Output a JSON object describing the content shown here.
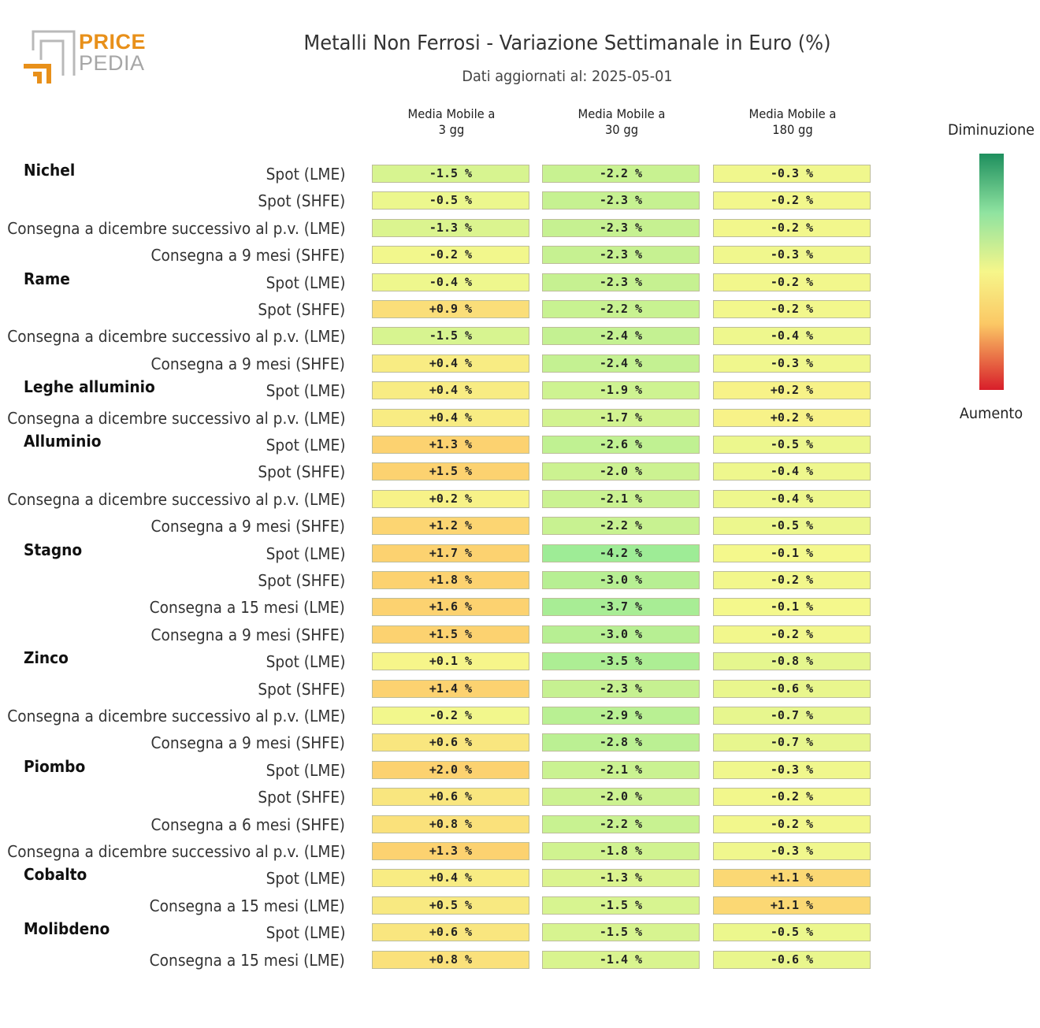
{
  "logo": {
    "word1": "PRICE",
    "word2": "PEDIA"
  },
  "chart_data": {
    "type": "heatmap",
    "title": "Metalli Non Ferrosi - Variazione Settimanale in Euro (%)",
    "subtitle": "Dati aggiornati al: 2025-05-01",
    "columns": [
      "Media Mobile a\n3 gg",
      "Media Mobile a\n30 gg",
      "Media Mobile a\n180 gg"
    ],
    "unit": "%",
    "legend": {
      "top": "Diminuzione",
      "bottom": "Aumento"
    },
    "groups": [
      {
        "name": "Nichel",
        "rows": [
          {
            "label": "Spot (LME)",
            "values": [
              -1.5,
              -2.2,
              -0.3
            ]
          },
          {
            "label": "Spot (SHFE)",
            "values": [
              -0.5,
              -2.3,
              -0.2
            ]
          },
          {
            "label": "Consegna a dicembre successivo al p.v. (LME)",
            "values": [
              -1.3,
              -2.3,
              -0.2
            ]
          },
          {
            "label": "Consegna a 9 mesi (SHFE)",
            "values": [
              -0.2,
              -2.3,
              -0.3
            ]
          }
        ]
      },
      {
        "name": "Rame",
        "rows": [
          {
            "label": "Spot (LME)",
            "values": [
              -0.4,
              -2.3,
              -0.2
            ]
          },
          {
            "label": "Spot (SHFE)",
            "values": [
              0.9,
              -2.2,
              -0.2
            ]
          },
          {
            "label": "Consegna a dicembre successivo al p.v. (LME)",
            "values": [
              -1.5,
              -2.4,
              -0.4
            ]
          },
          {
            "label": "Consegna a 9 mesi (SHFE)",
            "values": [
              0.4,
              -2.4,
              -0.3
            ]
          }
        ]
      },
      {
        "name": "Leghe alluminio",
        "rows": [
          {
            "label": "Spot (LME)",
            "values": [
              0.4,
              -1.9,
              0.2
            ]
          },
          {
            "label": "Consegna a dicembre successivo al p.v. (LME)",
            "values": [
              0.4,
              -1.7,
              0.2
            ]
          }
        ]
      },
      {
        "name": "Alluminio",
        "rows": [
          {
            "label": "Spot (LME)",
            "values": [
              1.3,
              -2.6,
              -0.5
            ]
          },
          {
            "label": "Spot (SHFE)",
            "values": [
              1.5,
              -2.0,
              -0.4
            ]
          },
          {
            "label": "Consegna a dicembre successivo al p.v. (LME)",
            "values": [
              0.2,
              -2.1,
              -0.4
            ]
          },
          {
            "label": "Consegna a 9 mesi (SHFE)",
            "values": [
              1.2,
              -2.2,
              -0.5
            ]
          }
        ]
      },
      {
        "name": "Stagno",
        "rows": [
          {
            "label": "Spot (LME)",
            "values": [
              1.7,
              -4.2,
              -0.1
            ]
          },
          {
            "label": "Spot (SHFE)",
            "values": [
              1.8,
              -3.0,
              -0.2
            ]
          },
          {
            "label": "Consegna a 15 mesi (LME)",
            "values": [
              1.6,
              -3.7,
              -0.1
            ]
          },
          {
            "label": "Consegna a 9 mesi (SHFE)",
            "values": [
              1.5,
              -3.0,
              -0.2
            ]
          }
        ]
      },
      {
        "name": "Zinco",
        "rows": [
          {
            "label": "Spot (LME)",
            "values": [
              0.1,
              -3.5,
              -0.8
            ]
          },
          {
            "label": "Spot (SHFE)",
            "values": [
              1.4,
              -2.3,
              -0.6
            ]
          },
          {
            "label": "Consegna a dicembre successivo al p.v. (LME)",
            "values": [
              -0.2,
              -2.9,
              -0.7
            ]
          },
          {
            "label": "Consegna a 9 mesi (SHFE)",
            "values": [
              0.6,
              -2.8,
              -0.7
            ]
          }
        ]
      },
      {
        "name": "Piombo",
        "rows": [
          {
            "label": "Spot (LME)",
            "values": [
              2.0,
              -2.1,
              -0.3
            ]
          },
          {
            "label": "Spot (SHFE)",
            "values": [
              0.6,
              -2.0,
              -0.2
            ]
          },
          {
            "label": "Consegna a 6 mesi (SHFE)",
            "values": [
              0.8,
              -2.2,
              -0.2
            ]
          },
          {
            "label": "Consegna a dicembre successivo al p.v. (LME)",
            "values": [
              1.3,
              -1.8,
              -0.3
            ]
          }
        ]
      },
      {
        "name": "Cobalto",
        "rows": [
          {
            "label": "Spot (LME)",
            "values": [
              0.4,
              -1.3,
              1.1
            ]
          },
          {
            "label": "Consegna a 15 mesi (LME)",
            "values": [
              0.5,
              -1.5,
              1.1
            ]
          }
        ]
      },
      {
        "name": "Molibdeno",
        "rows": [
          {
            "label": "Spot (LME)",
            "values": [
              0.6,
              -1.5,
              -0.5
            ]
          },
          {
            "label": "Consegna a 15 mesi (LME)",
            "values": [
              0.8,
              -1.4,
              -0.6
            ]
          }
        ]
      }
    ]
  }
}
